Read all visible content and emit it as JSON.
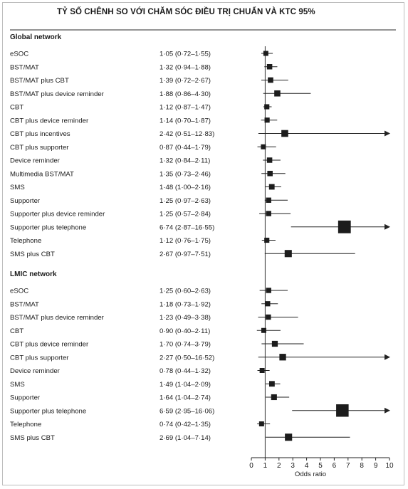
{
  "heading": "TỶ SỐ CHÊNH SO VỚI CHĂM SÓC ĐIỀU TRỊ CHUẨN VÀ KTC 95%",
  "chart_data": {
    "type": "forest",
    "xlabel": "Odds ratio",
    "xlim": [
      0,
      10
    ],
    "xticks": [
      0,
      1,
      2,
      3,
      4,
      5,
      6,
      7,
      8,
      9,
      10
    ],
    "reference_line": 1,
    "groups": [
      {
        "name": "Global network",
        "rows": [
          {
            "label": "eSOC",
            "or": 1.05,
            "lo": 0.72,
            "hi": 1.55,
            "ci_text": "1·05 (0·72–1·55)"
          },
          {
            "label": "BST/MAT",
            "or": 1.32,
            "lo": 0.94,
            "hi": 1.88,
            "ci_text": "1·32 (0·94–1·88)"
          },
          {
            "label": "BST/MAT plus CBT",
            "or": 1.39,
            "lo": 0.72,
            "hi": 2.67,
            "ci_text": "1·39 (0·72–2·67)"
          },
          {
            "label": "BST/MAT plus device reminder",
            "or": 1.88,
            "lo": 0.86,
            "hi": 4.3,
            "ci_text": "1·88 (0·86–4·30)"
          },
          {
            "label": "CBT",
            "or": 1.12,
            "lo": 0.87,
            "hi": 1.47,
            "ci_text": "1·12 (0·87–1·47)"
          },
          {
            "label": "CBT plus device reminder",
            "or": 1.14,
            "lo": 0.7,
            "hi": 1.87,
            "ci_text": "1·14 (0·70–1·87)"
          },
          {
            "label": "CBT plus incentives",
            "or": 2.42,
            "lo": 0.51,
            "hi": 12.83,
            "ci_text": "2·42 (0·51–12·83)"
          },
          {
            "label": "CBT plus supporter",
            "or": 0.87,
            "lo": 0.44,
            "hi": 1.79,
            "ci_text": "0·87 (0·44–1·79)"
          },
          {
            "label": "Device reminder",
            "or": 1.32,
            "lo": 0.84,
            "hi": 2.11,
            "ci_text": "1·32 (0·84–2·11)"
          },
          {
            "label": "Multimedia BST/MAT",
            "or": 1.35,
            "lo": 0.73,
            "hi": 2.46,
            "ci_text": "1·35 (0·73–2·46)"
          },
          {
            "label": "SMS",
            "or": 1.48,
            "lo": 1.0,
            "hi": 2.16,
            "ci_text": "1·48 (1·00–2·16)"
          },
          {
            "label": "Supporter",
            "or": 1.25,
            "lo": 0.97,
            "hi": 2.63,
            "ci_text": "1·25 (0·97–2·63)"
          },
          {
            "label": "Supporter plus device reminder",
            "or": 1.25,
            "lo": 0.57,
            "hi": 2.84,
            "ci_text": "1·25 (0·57–2·84)"
          },
          {
            "label": "Supporter plus telephone",
            "or": 6.74,
            "lo": 2.87,
            "hi": 16.55,
            "ci_text": "6·74 (2·87–16·55)"
          },
          {
            "label": "Telephone",
            "or": 1.12,
            "lo": 0.76,
            "hi": 1.75,
            "ci_text": "1·12 (0·76–1·75)"
          },
          {
            "label": "SMS plus CBT",
            "or": 2.67,
            "lo": 0.97,
            "hi": 7.51,
            "ci_text": "2·67 (0·97–7·51)"
          }
        ]
      },
      {
        "name": "LMIC network",
        "rows": [
          {
            "label": "eSOC",
            "or": 1.25,
            "lo": 0.6,
            "hi": 2.63,
            "ci_text": "1·25 (0·60–2·63)"
          },
          {
            "label": "BST/MAT",
            "or": 1.18,
            "lo": 0.73,
            "hi": 1.92,
            "ci_text": "1·18 (0·73–1·92)"
          },
          {
            "label": "BST/MAT plus device reminder",
            "or": 1.23,
            "lo": 0.49,
            "hi": 3.38,
            "ci_text": "1·23 (0·49–3·38)"
          },
          {
            "label": "CBT",
            "or": 0.9,
            "lo": 0.4,
            "hi": 2.11,
            "ci_text": "0·90 (0·40–2·11)"
          },
          {
            "label": "CBT plus device reminder",
            "or": 1.7,
            "lo": 0.74,
            "hi": 3.79,
            "ci_text": "1·70 (0·74–3·79)"
          },
          {
            "label": "CBT plus supporter",
            "or": 2.27,
            "lo": 0.5,
            "hi": 16.52,
            "ci_text": "2·27 (0·50–16·52)"
          },
          {
            "label": "Device reminder",
            "or": 0.78,
            "lo": 0.44,
            "hi": 1.32,
            "ci_text": "0·78 (0·44–1·32)"
          },
          {
            "label": "SMS",
            "or": 1.49,
            "lo": 1.04,
            "hi": 2.09,
            "ci_text": "1·49 (1·04–2·09)"
          },
          {
            "label": "Supporter",
            "or": 1.64,
            "lo": 1.04,
            "hi": 2.74,
            "ci_text": "1·64 (1·04–2·74)"
          },
          {
            "label": "Supporter plus telephone",
            "or": 6.59,
            "lo": 2.95,
            "hi": 16.06,
            "ci_text": "6·59 (2·95–16·06)"
          },
          {
            "label": "Telephone",
            "or": 0.74,
            "lo": 0.42,
            "hi": 1.35,
            "ci_text": "0·74 (0·42–1·35)"
          },
          {
            "label": "SMS plus CBT",
            "or": 2.69,
            "lo": 1.04,
            "hi": 7.14,
            "ci_text": "2·69 (1·04–7·14)"
          }
        ]
      }
    ]
  }
}
